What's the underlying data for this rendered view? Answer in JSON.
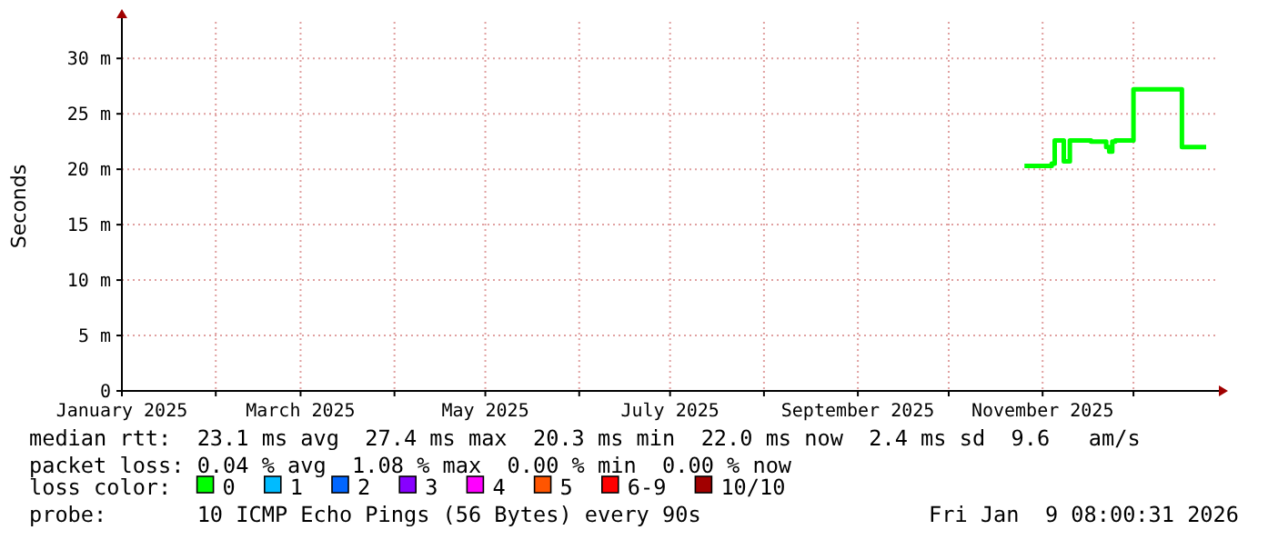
{
  "chart_data": {
    "type": "step",
    "ylabel": "Seconds",
    "legend_title": "loss color:",
    "legend": "bottom",
    "grid": true,
    "xlim": [
      "2025-01-01",
      "2025-12-28"
    ],
    "xticks": [
      {
        "value": "2025-01-01",
        "label": "January 2025"
      },
      {
        "value": "2025-02-01",
        "label": null
      },
      {
        "value": "2025-03-01",
        "label": "March 2025"
      },
      {
        "value": "2025-04-01",
        "label": null
      },
      {
        "value": "2025-05-01",
        "label": "May 2025"
      },
      {
        "value": "2025-06-01",
        "label": null
      },
      {
        "value": "2025-07-01",
        "label": "July 2025"
      },
      {
        "value": "2025-08-01",
        "label": null
      },
      {
        "value": "2025-09-01",
        "label": "September 2025"
      },
      {
        "value": "2025-10-01",
        "label": null
      },
      {
        "value": "2025-11-01",
        "label": "November 2025"
      },
      {
        "value": "2025-12-01",
        "label": null
      }
    ],
    "ylim": [
      0,
      33.3
    ],
    "yticks": [
      0,
      {
        "value": 5,
        "label": "5 m"
      },
      {
        "value": 10,
        "label": "10 m"
      },
      {
        "value": 15,
        "label": "15 m"
      },
      {
        "value": 20,
        "label": "20 m"
      },
      {
        "value": 25,
        "label": "25 m"
      },
      {
        "value": 30,
        "label": "30 m"
      }
    ],
    "series": [
      {
        "name": "0",
        "color": "#00ff00",
        "x": [
          "2025-10-26",
          "2025-11-04",
          "2025-11-05",
          "2025-11-07",
          "2025-11-08",
          "2025-11-09",
          "2025-11-10",
          "2025-11-17",
          "2025-11-22",
          "2025-11-23",
          "2025-11-24",
          "2025-11-25",
          "2025-12-01",
          "2025-12-10",
          "2025-12-17",
          "2025-12-25"
        ],
        "values": [
          20.3,
          20.5,
          22.6,
          22.6,
          20.7,
          20.7,
          22.6,
          22.5,
          22.0,
          21.6,
          22.5,
          22.6,
          27.2,
          27.2,
          22.0,
          22.0
        ]
      },
      {
        "name": "1",
        "color": "#00bbff"
      },
      {
        "name": "2",
        "color": "#0066ff"
      },
      {
        "name": "3",
        "color": "#8800ff"
      },
      {
        "name": "4",
        "color": "#ff00ff"
      },
      {
        "name": "5",
        "color": "#ff5500"
      },
      {
        "name": "6-9",
        "color": "#ff0000"
      },
      {
        "name": "10/10",
        "color": "#a10000"
      }
    ],
    "annotations": [
      "median rtt:  23.1 ms avg  27.4 ms max  20.3 ms min  22.0 ms now  2.4 ms sd  9.6   am/s",
      "packet loss: 0.04 % avg  1.08 % max  0.00 % min  0.00 % now",
      "probe:       10 ICMP Echo Pings (56 Bytes) every 90s",
      "Fri Jan  9 08:00:31 2026"
    ]
  }
}
